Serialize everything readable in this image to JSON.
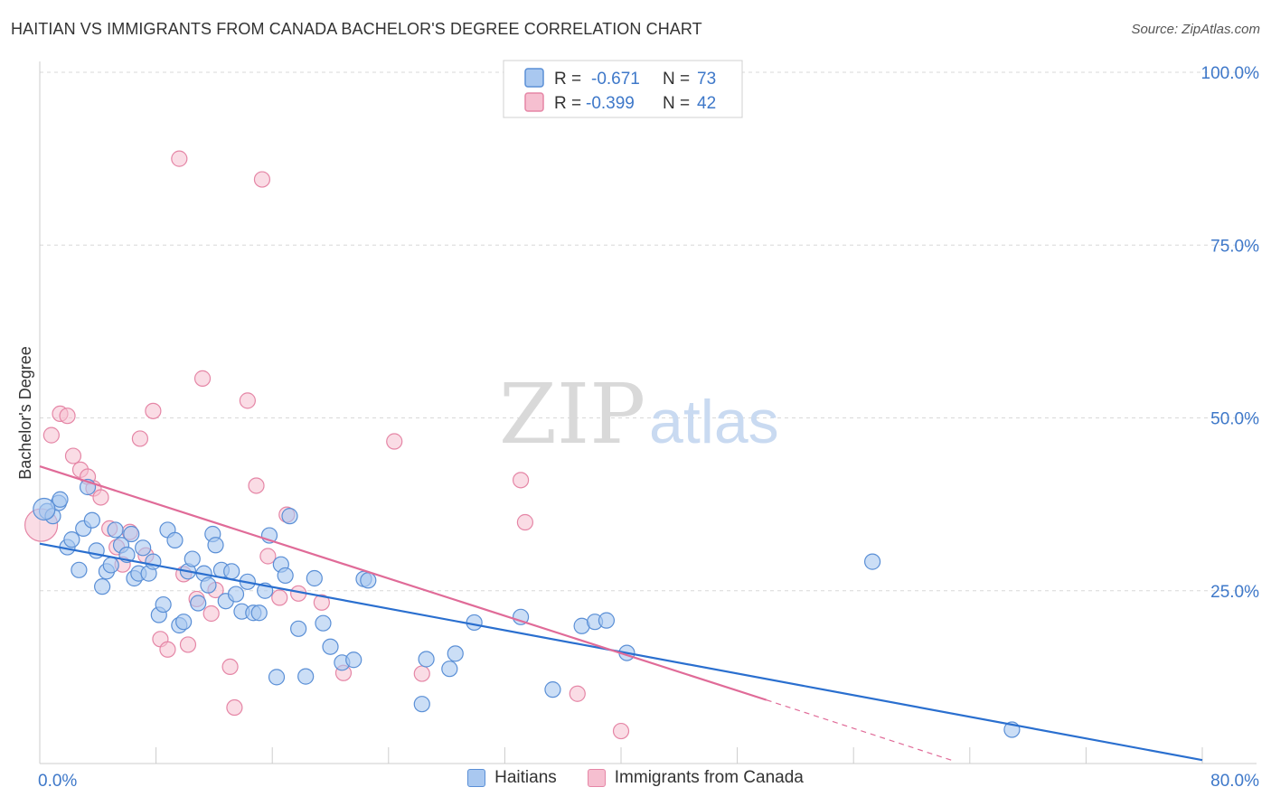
{
  "header": {
    "title": "HAITIAN VS IMMIGRANTS FROM CANADA BACHELOR'S DEGREE CORRELATION CHART",
    "source": "Source: ZipAtlas.com"
  },
  "watermark": {
    "zip": "ZIP",
    "atlas": "atlas"
  },
  "colors": {
    "blue_fill": "#a9c8f0",
    "blue_stroke": "#5a8fd6",
    "blue_line": "#2a6fcf",
    "pink_fill": "#f6bfd0",
    "pink_stroke": "#e586a6",
    "pink_line": "#e06b98",
    "axis_text": "#3e78c9",
    "grid": "#d8d8d8"
  },
  "legend_top": {
    "rows": [
      {
        "r_label": "R =",
        "r_value": "-0.671",
        "n_label": "N =",
        "n_value": "73"
      },
      {
        "r_label": "R =",
        "r_value": "-0.399",
        "n_label": "N =",
        "n_value": "42"
      }
    ]
  },
  "legend_bottom": {
    "haitians": "Haitians",
    "canada": "Immigrants from Canada"
  },
  "chart_data": {
    "type": "scatter",
    "title": "HAITIAN VS IMMIGRANTS FROM CANADA BACHELOR'S DEGREE CORRELATION CHART",
    "xlabel": "",
    "ylabel": "Bachelor's Degree",
    "xlim": [
      0,
      80
    ],
    "ylim": [
      0,
      100
    ],
    "x_tick_labels": [
      "0.0%",
      "80.0%"
    ],
    "y_tick_values": [
      25,
      50,
      75,
      100
    ],
    "y_tick_labels": [
      "25.0%",
      "50.0%",
      "75.0%",
      "100.0%"
    ],
    "grid": true,
    "series": [
      {
        "name": "Haitians",
        "r": -0.671,
        "n": 73,
        "trend": {
          "x": [
            0,
            80
          ],
          "y": [
            31.8,
            0.5
          ]
        },
        "points": [
          [
            0.5,
            36.5
          ],
          [
            0.9,
            35.8
          ],
          [
            1.3,
            37.7
          ],
          [
            1.4,
            38.2
          ],
          [
            1.9,
            31.3
          ],
          [
            2.2,
            32.4
          ],
          [
            2.7,
            28.0
          ],
          [
            3.0,
            34.0
          ],
          [
            3.3,
            40.0
          ],
          [
            3.6,
            35.2
          ],
          [
            3.9,
            30.8
          ],
          [
            4.3,
            25.6
          ],
          [
            4.6,
            27.8
          ],
          [
            4.9,
            28.7
          ],
          [
            5.2,
            33.8
          ],
          [
            5.6,
            31.6
          ],
          [
            6.0,
            30.2
          ],
          [
            6.3,
            33.2
          ],
          [
            6.5,
            26.8
          ],
          [
            6.8,
            27.5
          ],
          [
            7.1,
            31.2
          ],
          [
            7.5,
            27.5
          ],
          [
            7.8,
            29.2
          ],
          [
            8.2,
            21.5
          ],
          [
            8.5,
            23.0
          ],
          [
            8.8,
            33.8
          ],
          [
            9.3,
            32.3
          ],
          [
            9.6,
            20.0
          ],
          [
            9.9,
            20.5
          ],
          [
            10.2,
            27.8
          ],
          [
            10.5,
            29.6
          ],
          [
            10.9,
            23.2
          ],
          [
            11.3,
            27.5
          ],
          [
            11.6,
            25.8
          ],
          [
            11.9,
            33.2
          ],
          [
            12.1,
            31.6
          ],
          [
            12.5,
            28.0
          ],
          [
            12.8,
            23.5
          ],
          [
            13.2,
            27.8
          ],
          [
            13.5,
            24.5
          ],
          [
            13.9,
            22.0
          ],
          [
            14.3,
            26.3
          ],
          [
            14.7,
            21.8
          ],
          [
            15.1,
            21.8
          ],
          [
            15.5,
            25.0
          ],
          [
            15.8,
            33.0
          ],
          [
            16.3,
            12.5
          ],
          [
            16.6,
            28.8
          ],
          [
            16.9,
            27.2
          ],
          [
            17.2,
            35.8
          ],
          [
            17.8,
            19.5
          ],
          [
            18.3,
            12.6
          ],
          [
            18.9,
            26.8
          ],
          [
            19.5,
            20.3
          ],
          [
            20.0,
            16.9
          ],
          [
            20.8,
            14.6
          ],
          [
            21.6,
            15.0
          ],
          [
            22.3,
            26.7
          ],
          [
            22.6,
            26.5
          ],
          [
            26.3,
            8.6
          ],
          [
            26.6,
            15.1
          ],
          [
            28.2,
            13.7
          ],
          [
            28.6,
            15.9
          ],
          [
            29.9,
            20.4
          ],
          [
            33.1,
            21.2
          ],
          [
            35.3,
            10.7
          ],
          [
            37.3,
            19.9
          ],
          [
            38.2,
            20.5
          ],
          [
            39.0,
            20.7
          ],
          [
            40.4,
            16.0
          ],
          [
            57.3,
            29.2
          ],
          [
            66.9,
            4.9
          ],
          [
            0.3,
            36.8
          ]
        ]
      },
      {
        "name": "Immigrants from Canada",
        "r": -0.399,
        "n": 42,
        "trend": {
          "x": [
            0,
            50
          ],
          "y": [
            43.0,
            9.2
          ]
        },
        "trend_dashed": {
          "x": [
            50,
            63
          ],
          "y": [
            9.2,
            0.3
          ]
        },
        "points": [
          [
            0.1,
            34.5
          ],
          [
            0.8,
            47.5
          ],
          [
            1.4,
            50.6
          ],
          [
            1.9,
            50.3
          ],
          [
            2.3,
            44.5
          ],
          [
            2.8,
            42.5
          ],
          [
            3.3,
            41.5
          ],
          [
            3.7,
            39.8
          ],
          [
            4.2,
            38.5
          ],
          [
            4.8,
            34.0
          ],
          [
            5.3,
            31.3
          ],
          [
            5.7,
            28.8
          ],
          [
            6.2,
            33.5
          ],
          [
            6.9,
            47.0
          ],
          [
            7.3,
            30.1
          ],
          [
            7.8,
            51.0
          ],
          [
            8.3,
            18.0
          ],
          [
            8.8,
            16.5
          ],
          [
            9.6,
            87.5
          ],
          [
            9.9,
            27.4
          ],
          [
            10.2,
            17.2
          ],
          [
            10.8,
            23.8
          ],
          [
            11.2,
            55.7
          ],
          [
            11.8,
            21.7
          ],
          [
            12.1,
            25.1
          ],
          [
            13.1,
            14.0
          ],
          [
            13.4,
            8.1
          ],
          [
            14.3,
            52.5
          ],
          [
            14.9,
            40.2
          ],
          [
            15.3,
            84.5
          ],
          [
            15.7,
            30.0
          ],
          [
            16.5,
            24.0
          ],
          [
            17.0,
            36.0
          ],
          [
            17.8,
            24.6
          ],
          [
            19.4,
            23.3
          ],
          [
            20.9,
            13.1
          ],
          [
            24.4,
            46.6
          ],
          [
            26.3,
            13.0
          ],
          [
            33.1,
            41.0
          ],
          [
            33.4,
            34.9
          ],
          [
            37.0,
            10.1
          ],
          [
            40.0,
            4.7
          ]
        ]
      }
    ]
  }
}
